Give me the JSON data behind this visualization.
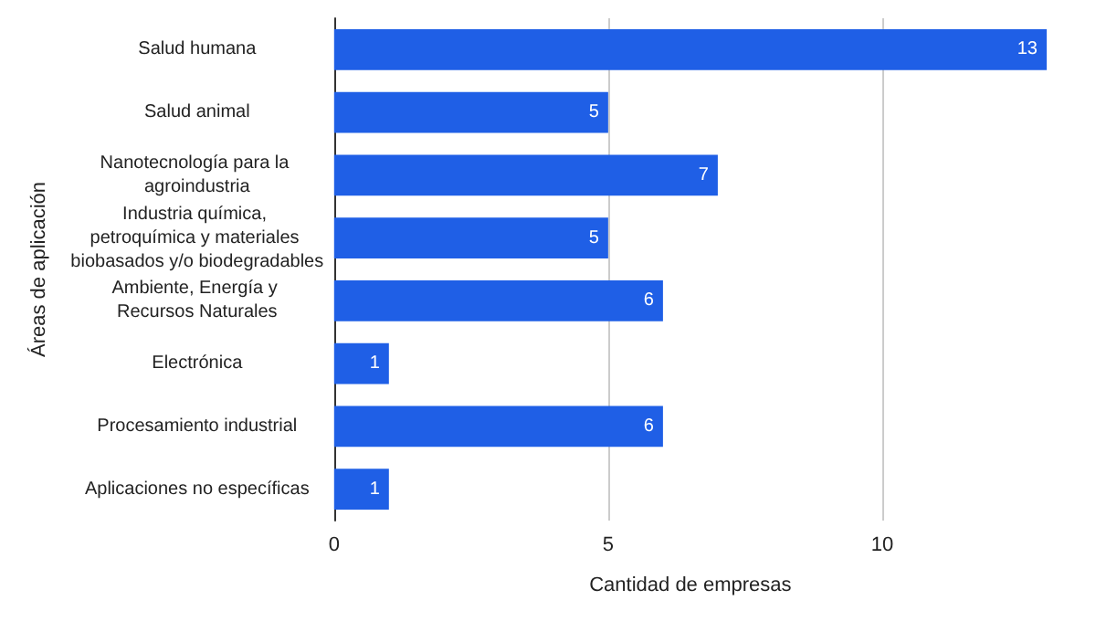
{
  "chart_data": {
    "type": "bar",
    "orientation": "horizontal",
    "xlabel": "Cantidad de empresas",
    "ylabel": "Áreas de aplicación",
    "categories": [
      "Salud humana",
      "Salud animal",
      "Nanotecnología para la agroindustria",
      "Industria química, petroquímica y materiales biobasados y/o biodegradables",
      "Ambiente, Energía y Recursos Naturales",
      "Electrónica",
      "Procesamiento industrial",
      "Aplicaciones no específicas"
    ],
    "values": [
      13,
      5,
      7,
      5,
      6,
      1,
      6,
      1
    ],
    "color": "#1f5fe6",
    "xlim": [
      0,
      13
    ],
    "xticks": [
      0,
      5,
      10
    ],
    "grid": "x",
    "data_labels": true
  }
}
